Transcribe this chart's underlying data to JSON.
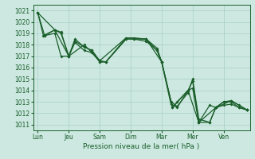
{
  "xlabel": "Pression niveau de la mer( hPa )",
  "ylim": [
    1010.5,
    1021.5
  ],
  "yticks": [
    1011,
    1012,
    1013,
    1014,
    1015,
    1016,
    1017,
    1018,
    1019,
    1020,
    1021
  ],
  "xtick_labels": [
    "Lun",
    "Jeu",
    "Sam",
    "Dim",
    "Mar",
    "Mer",
    "Ven"
  ],
  "xtick_positions": [
    0,
    1,
    2,
    3,
    4,
    5,
    6
  ],
  "xlim": [
    -0.15,
    6.85
  ],
  "background_color": "#cce8e0",
  "grid_color": "#aacfc8",
  "line_color": "#1a5e2a",
  "line1_x": [
    0.0,
    0.18,
    0.55,
    0.75,
    1.0,
    1.2,
    1.5,
    1.75,
    2.0,
    2.2,
    2.85,
    3.1,
    3.5,
    3.85,
    4.0,
    4.35,
    4.5,
    4.85,
    5.0,
    5.2,
    5.55,
    5.75,
    6.0,
    6.25,
    6.5,
    6.75
  ],
  "line1_y": [
    1020.8,
    1018.8,
    1019.3,
    1019.1,
    1017.0,
    1018.5,
    1017.8,
    1017.5,
    1016.6,
    1016.5,
    1018.6,
    1018.6,
    1018.5,
    1017.7,
    1016.5,
    1012.5,
    1013.0,
    1014.0,
    1014.2,
    1011.2,
    1012.7,
    1012.5,
    1013.0,
    1013.1,
    1012.7,
    1012.3
  ],
  "line2_x": [
    0.0,
    0.55,
    1.0,
    1.5,
    2.0,
    2.85,
    3.5,
    4.0,
    4.35,
    4.85,
    5.2,
    5.75,
    6.25,
    6.75
  ],
  "line2_y": [
    1020.8,
    1019.3,
    1017.0,
    1018.0,
    1016.6,
    1018.6,
    1018.5,
    1016.5,
    1012.5,
    1014.0,
    1011.2,
    1012.5,
    1013.1,
    1012.3
  ],
  "line3_x": [
    0.0,
    0.22,
    0.55,
    0.75,
    1.0,
    1.2,
    1.5,
    1.75,
    2.0,
    2.2,
    2.85,
    3.1,
    3.5,
    3.85,
    4.0,
    4.3,
    4.5,
    4.85,
    5.0,
    5.2,
    5.55,
    5.75,
    6.0,
    6.25,
    6.5,
    6.75
  ],
  "line3_y": [
    1020.8,
    1018.8,
    1019.3,
    1019.0,
    1017.0,
    1018.3,
    1017.8,
    1017.5,
    1016.5,
    1016.5,
    1018.5,
    1018.5,
    1018.5,
    1017.5,
    1016.5,
    1013.0,
    1012.6,
    1013.8,
    1015.0,
    1011.5,
    1011.2,
    1012.5,
    1013.0,
    1013.0,
    1012.5,
    1012.3
  ],
  "line4_x": [
    0.22,
    0.55,
    0.75,
    1.0,
    1.2,
    1.5,
    1.75,
    2.0,
    2.2,
    2.85,
    3.1,
    3.5,
    3.85,
    4.0,
    4.3,
    4.5,
    4.85,
    5.0,
    5.2,
    5.55,
    5.75,
    6.0,
    6.25,
    6.5,
    6.75
  ],
  "line4_y": [
    1018.8,
    1019.0,
    1017.0,
    1017.0,
    1018.2,
    1017.5,
    1017.3,
    1016.5,
    1016.5,
    1018.5,
    1018.5,
    1018.3,
    1017.5,
    1016.5,
    1012.8,
    1012.5,
    1014.0,
    1014.8,
    1011.2,
    1011.2,
    1012.5,
    1012.7,
    1012.8,
    1012.5,
    1012.3
  ]
}
